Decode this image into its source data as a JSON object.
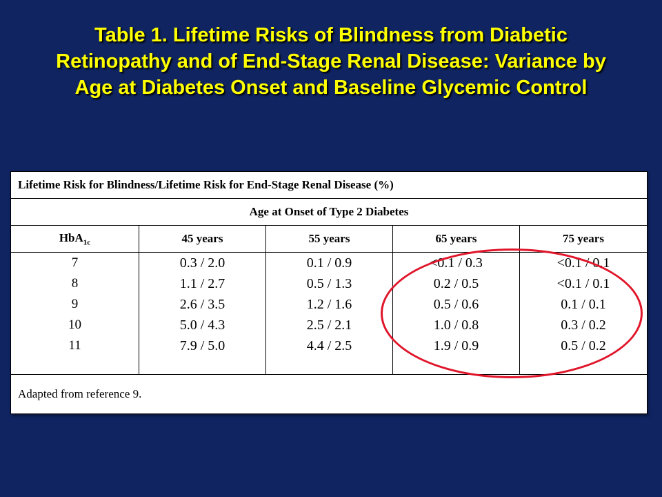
{
  "title": {
    "line1": "Table 1. Lifetime Risks of Blindness from Diabetic",
    "line2": "Retinopathy and of End-Stage Renal Disease: Variance by",
    "line3": "Age at Diabetes Onset and Baseline Glycemic Control"
  },
  "table": {
    "header": "Lifetime Risk for Blindness/Lifetime Risk for End-Stage Renal Disease (%)",
    "subheader": "Age at Onset of Type 2 Diabetes",
    "col_hba_main": "HbA",
    "col_hba_sub": "1c",
    "columns": [
      "45 years",
      "55 years",
      "65 years",
      "75 years"
    ],
    "hba_values": [
      "7",
      "8",
      "9",
      "10",
      "11"
    ],
    "data": {
      "c45": [
        "0.3 / 2.0",
        "1.1 / 2.7",
        "2.6 / 3.5",
        "5.0 / 4.3",
        "7.9 / 5.0"
      ],
      "c55": [
        "0.1 / 0.9",
        "0.5 / 1.3",
        "1.2 / 1.6",
        "2.5 / 2.1",
        "4.4 / 2.5"
      ],
      "c65": [
        "<0.1 / 0.3",
        "0.2 / 0.5",
        "0.5 / 0.6",
        "1.0 / 0.8",
        "1.9 / 0.9"
      ],
      "c75": [
        "<0.1 / 0.1",
        "<0.1 / 0.1",
        "0.1 / 0.1",
        "0.3 / 0.2",
        "0.5 / 0.2"
      ]
    },
    "footer": "Adapted from reference 9."
  },
  "colors": {
    "background": "#0f2460",
    "title": "#ffff00",
    "highlight_circle": "#e0152a"
  }
}
